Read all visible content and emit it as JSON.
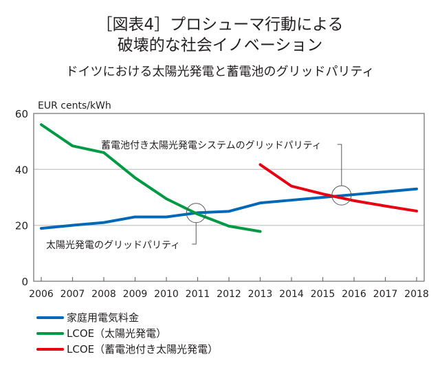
{
  "header": {
    "title_line1": "［図表4］プロシューマ行動による",
    "title_line2": "破壊的な社会イノベーション",
    "subtitle": "ドイツにおける太陽光発電と蓄電池のグリッドパリティ"
  },
  "chart_data": {
    "type": "line",
    "ylabel": "EUR cents/kWh",
    "ylim": [
      0,
      60
    ],
    "yticks": [
      "0",
      "20",
      "40",
      "60"
    ],
    "ytick_values": [
      0,
      20,
      40,
      60
    ],
    "x": [
      2006,
      2007,
      2008,
      2009,
      2010,
      2011,
      2012,
      2013,
      2014,
      2015,
      2016,
      2017,
      2018
    ],
    "xtick_labels": [
      "2006",
      "2007",
      "2008",
      "2009",
      "2010",
      "2011",
      "2012",
      "2013",
      "2014",
      "2015",
      "2016",
      "2017",
      "2018"
    ],
    "grid": "horizontal",
    "series": [
      {
        "name": "家庭用電気料金",
        "color": "#0068b7",
        "x": [
          2006,
          2007,
          2008,
          2009,
          2010,
          2011,
          2012,
          2013,
          2014,
          2015,
          2016,
          2017,
          2018
        ],
        "values": [
          18.9,
          20,
          21,
          23,
          23,
          24.5,
          25,
          28,
          29,
          30,
          31,
          32,
          33
        ]
      },
      {
        "name": "LCOE（太陽光発電）",
        "color": "#009944",
        "x": [
          2006,
          2007,
          2008,
          2009,
          2010,
          2011,
          2012,
          2013
        ],
        "values": [
          56,
          48.4,
          46,
          37,
          29.5,
          24,
          19.7,
          17.8
        ]
      },
      {
        "name": "LCOE（蓄電池付き太陽光発電）",
        "color": "#e60012",
        "x": [
          2013,
          2014,
          2015,
          2016,
          2017,
          2018
        ],
        "values": [
          41.7,
          34,
          31.2,
          28.8,
          26.9,
          25.1
        ]
      }
    ],
    "annotations": [
      {
        "text": "蓄電池付き太陽光発電システムのグリッドパリティ",
        "x": 2015.6,
        "y": 30.7
      },
      {
        "text": "太陽光発電のグリッドパリティ",
        "x": 2010.95,
        "y": 24.4
      }
    ],
    "legend": "bottom-left"
  }
}
